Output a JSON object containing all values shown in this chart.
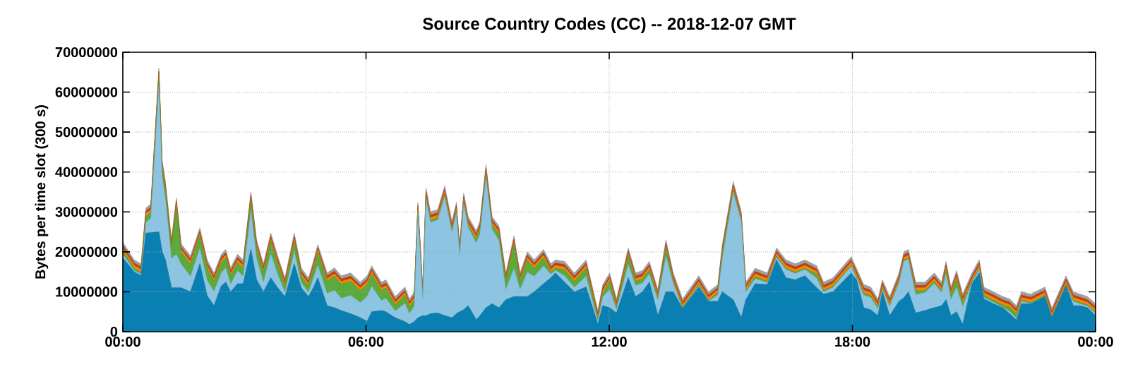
{
  "chart_data": {
    "type": "area",
    "stacked": true,
    "title": "Source Country Codes (CC) -- 2018-12-07 GMT",
    "ylabel": "Bytes per time slot (300 s)",
    "xlim": [
      0,
      24
    ],
    "xticks": [
      {
        "value": 0,
        "label": "00:00"
      },
      {
        "value": 6,
        "label": "06:00"
      },
      {
        "value": 12,
        "label": "12:00"
      },
      {
        "value": 18,
        "label": "18:00"
      },
      {
        "value": 24,
        "label": "00:00"
      }
    ],
    "ylim": [
      0,
      70000000
    ],
    "yticks": [
      0,
      10000000,
      20000000,
      30000000,
      40000000,
      50000000,
      60000000,
      70000000
    ],
    "grid": true,
    "x": [
      0,
      0.28,
      0.45,
      0.57,
      0.69,
      0.89,
      0.97,
      1.05,
      1.2,
      1.32,
      1.44,
      1.67,
      1.9,
      2.08,
      2.25,
      2.43,
      2.54,
      2.66,
      2.83,
      2.97,
      3.16,
      3.3,
      3.47,
      3.65,
      3.82,
      4.0,
      4.23,
      4.4,
      4.58,
      4.7,
      4.81,
      5.04,
      5.22,
      5.39,
      5.62,
      5.86,
      6.03,
      6.14,
      6.38,
      6.49,
      6.72,
      6.96,
      7.07,
      7.19,
      7.28,
      7.4,
      7.48,
      7.59,
      7.77,
      7.94,
      8.12,
      8.23,
      8.31,
      8.41,
      8.52,
      8.72,
      8.81,
      8.96,
      9.11,
      9.28,
      9.45,
      9.65,
      9.8,
      9.98,
      10.15,
      10.38,
      10.56,
      10.67,
      10.9,
      11.14,
      11.43,
      11.72,
      11.84,
      12.01,
      12.18,
      12.47,
      12.65,
      12.82,
      12.99,
      13.2,
      13.4,
      13.58,
      13.81,
      14.21,
      14.45,
      14.68,
      14.79,
      15.06,
      15.26,
      15.37,
      15.6,
      15.9,
      16.13,
      16.36,
      16.59,
      16.83,
      17.12,
      17.29,
      17.52,
      17.97,
      18.1,
      18.28,
      18.45,
      18.63,
      18.74,
      18.92,
      19.15,
      19.27,
      19.38,
      19.56,
      19.79,
      20.02,
      20.2,
      20.31,
      20.43,
      20.57,
      20.72,
      20.95,
      21.13,
      21.24,
      21.48,
      21.71,
      21.88,
      22.05,
      22.17,
      22.4,
      22.75,
      22.92,
      23.27,
      23.45,
      23.62,
      23.8,
      24
    ],
    "series": [
      {
        "color": "#0a80b2",
        "values": [
          18500000.0,
          15000000.0,
          14000000.0,
          24700000.0,
          24800000.0,
          25000000.0,
          20000000.0,
          18000000.0,
          11000000.0,
          11000000.0,
          11000000.0,
          10000000.0,
          17000000.0,
          9000000.0,
          6500000.0,
          11500000.0,
          12400000.0,
          10000000.0,
          12000000.0,
          12000000.0,
          20600000.0,
          13000000.0,
          10000000.0,
          13500000.0,
          11000000.0,
          8800000.0,
          17000000.0,
          11000000.0,
          8800000.0,
          11000000.0,
          13500000.0,
          6500000.0,
          6000000.0,
          5300000.0,
          4500000.0,
          3500000.0,
          2600000.0,
          5000000.0,
          5300000.0,
          5000000.0,
          3500000.0,
          2500000.0,
          1800000.0,
          2500000.0,
          3500000.0,
          4000000.0,
          4000000.0,
          4500000.0,
          4700000.0,
          4000000.0,
          3500000.0,
          4500000.0,
          5000000.0,
          5500000.0,
          6500000.0,
          3000000.0,
          4000000.0,
          6000000.0,
          7000000.0,
          6000000.0,
          8000000.0,
          8800000.0,
          8800000.0,
          8800000.0,
          10000000.0,
          12000000.0,
          13500000.0,
          14700000.0,
          12400000.0,
          10000000.0,
          11200000.0,
          1800000.0,
          6500000.0,
          6000000.0,
          4700000.0,
          13500000.0,
          8800000.0,
          10000000.0,
          12400000.0,
          4000000.0,
          10000000.0,
          10000000.0,
          5800000.0,
          11200000.0,
          7600000.0,
          7600000.0,
          10000000.0,
          8000000.0,
          3500000.0,
          8000000.0,
          12000000.0,
          11800000.0,
          18000000.0,
          13500000.0,
          13000000.0,
          14000000.0,
          11000000.0,
          9400000.0,
          10000000.0,
          14700000.0,
          13000000.0,
          6000000.0,
          5500000.0,
          4000000.0,
          10000000.0,
          4000000.0,
          7600000.0,
          8500000.0,
          10000000.0,
          4700000.0,
          5300000.0,
          6000000.0,
          6500000.0,
          8000000.0,
          4000000.0,
          5000000.0,
          1800000.0,
          12000000.0,
          14700000.0,
          8200000.0,
          7000000.0,
          6000000.0,
          4500000.0,
          2900000.0,
          7000000.0,
          7000000.0,
          8800000.0,
          3500000.0,
          11500000.0,
          6500000.0,
          6500000.0,
          6000000.0,
          4000000.0
        ]
      },
      {
        "color": "#8cc4e2",
        "values": [
          1000000.0,
          400000.0,
          400000.0,
          2700000.0,
          3600000.0,
          36900000.0,
          18900000.0,
          15500000.0,
          7400000.0,
          8400000.0,
          5900000.0,
          3900000.0,
          3900000.0,
          3900000.0,
          3600000.0,
          3300000.0,
          3600000.0,
          1900000.0,
          3300000.0,
          1900000.0,
          9800000.0,
          5400000.0,
          2400000.0,
          6100000.0,
          3400000.0,
          1100000.0,
          3100000.0,
          1400000.0,
          1100000.0,
          2500000.0,
          3200000.0,
          3100000.0,
          4400000.0,
          3100000.0,
          4600000.0,
          3800000.0,
          6300000.0,
          6400000.0,
          2500000.0,
          3400000.0,
          1700000.0,
          4600000.0,
          2800000.0,
          3900000.0,
          26300000.0,
          4400000.0,
          29400000.0,
          22900000.0,
          23300000.0,
          29900000.0,
          21500000.0,
          25300000.0,
          14200000.0,
          26600000.0,
          19700000.0,
          19200000.0,
          20500000.0,
          32700000.0,
          18700000.0,
          16900000.0,
          2600000.0,
          7100000.0,
          1800000.0,
          6100000.0,
          3900000.0,
          4500000.0,
          900000.0,
          700000.0,
          1600000.0,
          1100000.0,
          2700000.0,
          900000.0,
          2200000.0,
          4600000.0,
          900000.0,
          3400000.0,
          2800000.0,
          2200000.0,
          2100000.0,
          4000000.0,
          8900000.0,
          2100000.0,
          100000.0,
          400000.0,
          100000.0,
          1600000.0,
          8200000.0,
          27000000.0,
          24100000.0,
          2000000.0,
          1300000.0,
          500000.0,
          600000.0,
          2100000.0,
          1600000.0,
          1600000.0,
          2400000.0,
          600000.0,
          1100000.0,
          1700000.0,
          500000.0,
          3200000.0,
          3100000.0,
          1800000.0,
          600000.0,
          2400000.0,
          4700000.0,
          9100000.0,
          8200000.0,
          4600000.0,
          4500000.0,
          6100000.0,
          3300000.0,
          6500000.0,
          4100000.0,
          6200000.0,
          4500000.0,
          300000.0,
          900000.0,
          400000.0,
          400000.0,
          200000.0,
          600000.0,
          500000.0,
          600000.0,
          100000.0,
          100000.0,
          100000.0,
          100000.0,
          1100000.0,
          500000.0,
          400000.0,
          600000.0
        ]
      },
      {
        "color": "#5aaa3c",
        "values": [
          800000.0,
          500000.0,
          500000.0,
          1500000.0,
          1500000.0,
          2000000.0,
          2000000.0,
          2000000.0,
          2500000.0,
          12000000.0,
          3000000.0,
          3000000.0,
          3000000.0,
          3000000.0,
          2500000.0,
          2500000.0,
          2500000.0,
          2000000.0,
          2000000.0,
          2000000.0,
          2500000.0,
          2500000.0,
          2500000.0,
          3000000.0,
          2500000.0,
          1500000.0,
          2500000.0,
          1500000.0,
          1500000.0,
          2000000.0,
          3000000.0,
          3000000.0,
          3500000.0,
          3500000.0,
          3500000.0,
          3000000.0,
          3000000.0,
          3000000.0,
          2500000.0,
          2500000.0,
          1500000.0,
          2000000.0,
          1500000.0,
          1500000.0,
          500000.0,
          500000.0,
          500000.0,
          500000.0,
          500000.0,
          500000.0,
          500000.0,
          500000.0,
          500000.0,
          500000.0,
          500000.0,
          1000000.0,
          1000000.0,
          1000000.0,
          1000000.0,
          1500000.0,
          2000000.0,
          6000000.0,
          2000000.0,
          3000000.0,
          2000000.0,
          2000000.0,
          500000.0,
          500000.0,
          1500000.0,
          1500000.0,
          2000000.0,
          500000.0,
          1000000.0,
          2000000.0,
          500000.0,
          2000000.0,
          1000000.0,
          1000000.0,
          1000000.0,
          500000.0,
          2000000.0,
          500000.0,
          200000.0,
          300000.0,
          200000.0,
          500000.0,
          1500000.0,
          500000.0,
          300000.0,
          300000.0,
          500000.0,
          300000.0,
          300000.0,
          300000.0,
          300000.0,
          300000.0,
          1000000.0,
          300000.0,
          300000.0,
          300000.0,
          300000.0,
          500000.0,
          500000.0,
          300000.0,
          300000.0,
          300000.0,
          300000.0,
          300000.0,
          300000.0,
          1000000.0,
          500000.0,
          500000.0,
          500000.0,
          1000000.0,
          1000000.0,
          2000000.0,
          1000000.0,
          300000.0,
          300000.0,
          500000.0,
          500000.0,
          500000.0,
          1000000.0,
          1000000.0,
          300000.0,
          200000.0,
          200000.0,
          200000.0,
          300000.0,
          300000.0,
          300000.0,
          300000.0,
          300000.0
        ]
      },
      {
        "color": "#f08c00",
        "values": [
          700000.0,
          700000.0,
          700000.0,
          700000.0,
          700000.0,
          700000.0,
          700000.0,
          700000.0,
          700000.0,
          700000.0,
          700000.0,
          700000.0,
          700000.0,
          700000.0,
          700000.0,
          700000.0,
          700000.0,
          700000.0,
          700000.0,
          700000.0,
          700000.0,
          700000.0,
          700000.0,
          700000.0,
          700000.0,
          700000.0,
          700000.0,
          700000.0,
          700000.0,
          700000.0,
          700000.0,
          700000.0,
          700000.0,
          700000.0,
          700000.0,
          700000.0,
          700000.0,
          700000.0,
          700000.0,
          700000.0,
          700000.0,
          700000.0,
          700000.0,
          700000.0,
          700000.0,
          700000.0,
          700000.0,
          700000.0,
          700000.0,
          700000.0,
          700000.0,
          700000.0,
          700000.0,
          700000.0,
          700000.0,
          700000.0,
          700000.0,
          700000.0,
          700000.0,
          700000.0,
          700000.0,
          700000.0,
          700000.0,
          700000.0,
          700000.0,
          700000.0,
          700000.0,
          700000.0,
          700000.0,
          700000.0,
          700000.0,
          700000.0,
          700000.0,
          700000.0,
          700000.0,
          700000.0,
          700000.0,
          700000.0,
          700000.0,
          700000.0,
          700000.0,
          700000.0,
          700000.0,
          700000.0,
          700000.0,
          700000.0,
          700000.0,
          700000.0,
          700000.0,
          700000.0,
          700000.0,
          700000.0,
          700000.0,
          700000.0,
          700000.0,
          700000.0,
          700000.0,
          700000.0,
          700000.0,
          700000.0,
          700000.0,
          700000.0,
          700000.0,
          700000.0,
          700000.0,
          700000.0,
          700000.0,
          700000.0,
          700000.0,
          700000.0,
          700000.0,
          700000.0,
          700000.0,
          700000.0,
          700000.0,
          700000.0,
          700000.0,
          700000.0,
          700000.0,
          700000.0,
          700000.0,
          700000.0,
          700000.0,
          700000.0,
          700000.0,
          700000.0,
          700000.0,
          700000.0,
          700000.0,
          700000.0,
          700000.0,
          700000.0,
          700000.0
        ]
      },
      {
        "color": "#c83c14",
        "values": [
          600000.0,
          600000.0,
          600000.0,
          600000.0,
          600000.0,
          600000.0,
          600000.0,
          600000.0,
          600000.0,
          600000.0,
          600000.0,
          600000.0,
          600000.0,
          600000.0,
          600000.0,
          600000.0,
          600000.0,
          600000.0,
          600000.0,
          600000.0,
          600000.0,
          600000.0,
          600000.0,
          600000.0,
          600000.0,
          600000.0,
          600000.0,
          600000.0,
          600000.0,
          600000.0,
          600000.0,
          600000.0,
          600000.0,
          600000.0,
          600000.0,
          600000.0,
          600000.0,
          600000.0,
          600000.0,
          600000.0,
          600000.0,
          600000.0,
          600000.0,
          600000.0,
          600000.0,
          600000.0,
          600000.0,
          600000.0,
          600000.0,
          600000.0,
          600000.0,
          600000.0,
          600000.0,
          600000.0,
          600000.0,
          600000.0,
          600000.0,
          600000.0,
          600000.0,
          600000.0,
          600000.0,
          600000.0,
          600000.0,
          600000.0,
          600000.0,
          600000.0,
          600000.0,
          600000.0,
          600000.0,
          600000.0,
          600000.0,
          600000.0,
          600000.0,
          600000.0,
          600000.0,
          600000.0,
          600000.0,
          600000.0,
          600000.0,
          600000.0,
          600000.0,
          600000.0,
          600000.0,
          600000.0,
          600000.0,
          600000.0,
          600000.0,
          600000.0,
          600000.0,
          600000.0,
          600000.0,
          600000.0,
          600000.0,
          600000.0,
          600000.0,
          600000.0,
          600000.0,
          600000.0,
          600000.0,
          600000.0,
          600000.0,
          600000.0,
          600000.0,
          600000.0,
          600000.0,
          600000.0,
          600000.0,
          600000.0,
          600000.0,
          600000.0,
          600000.0,
          600000.0,
          600000.0,
          600000.0,
          600000.0,
          600000.0,
          600000.0,
          600000.0,
          600000.0,
          600000.0,
          600000.0,
          600000.0,
          600000.0,
          600000.0,
          600000.0,
          600000.0,
          600000.0,
          600000.0,
          600000.0,
          600000.0,
          600000.0,
          600000.0,
          600000.0
        ]
      },
      {
        "color": "#a0a0a0",
        "values": [
          800000.0,
          800000.0,
          800000.0,
          800000.0,
          800000.0,
          800000.0,
          800000.0,
          800000.0,
          800000.0,
          800000.0,
          800000.0,
          800000.0,
          800000.0,
          800000.0,
          800000.0,
          800000.0,
          800000.0,
          800000.0,
          800000.0,
          800000.0,
          800000.0,
          800000.0,
          800000.0,
          800000.0,
          800000.0,
          800000.0,
          800000.0,
          800000.0,
          800000.0,
          800000.0,
          800000.0,
          800000.0,
          800000.0,
          800000.0,
          800000.0,
          800000.0,
          800000.0,
          800000.0,
          800000.0,
          800000.0,
          800000.0,
          800000.0,
          800000.0,
          800000.0,
          800000.0,
          800000.0,
          800000.0,
          800000.0,
          800000.0,
          800000.0,
          800000.0,
          800000.0,
          800000.0,
          800000.0,
          800000.0,
          800000.0,
          800000.0,
          800000.0,
          800000.0,
          800000.0,
          800000.0,
          800000.0,
          800000.0,
          800000.0,
          800000.0,
          800000.0,
          800000.0,
          800000.0,
          800000.0,
          800000.0,
          800000.0,
          800000.0,
          800000.0,
          800000.0,
          800000.0,
          800000.0,
          800000.0,
          800000.0,
          800000.0,
          800000.0,
          800000.0,
          800000.0,
          800000.0,
          800000.0,
          800000.0,
          800000.0,
          800000.0,
          800000.0,
          800000.0,
          800000.0,
          800000.0,
          800000.0,
          800000.0,
          800000.0,
          800000.0,
          800000.0,
          800000.0,
          800000.0,
          800000.0,
          800000.0,
          800000.0,
          800000.0,
          800000.0,
          800000.0,
          800000.0,
          800000.0,
          800000.0,
          800000.0,
          800000.0,
          800000.0,
          800000.0,
          800000.0,
          800000.0,
          800000.0,
          800000.0,
          800000.0,
          800000.0,
          800000.0,
          800000.0,
          800000.0,
          800000.0,
          800000.0,
          800000.0,
          800000.0,
          800000.0,
          800000.0,
          800000.0,
          800000.0,
          800000.0,
          800000.0,
          800000.0,
          800000.0,
          800000.0
        ]
      }
    ]
  }
}
